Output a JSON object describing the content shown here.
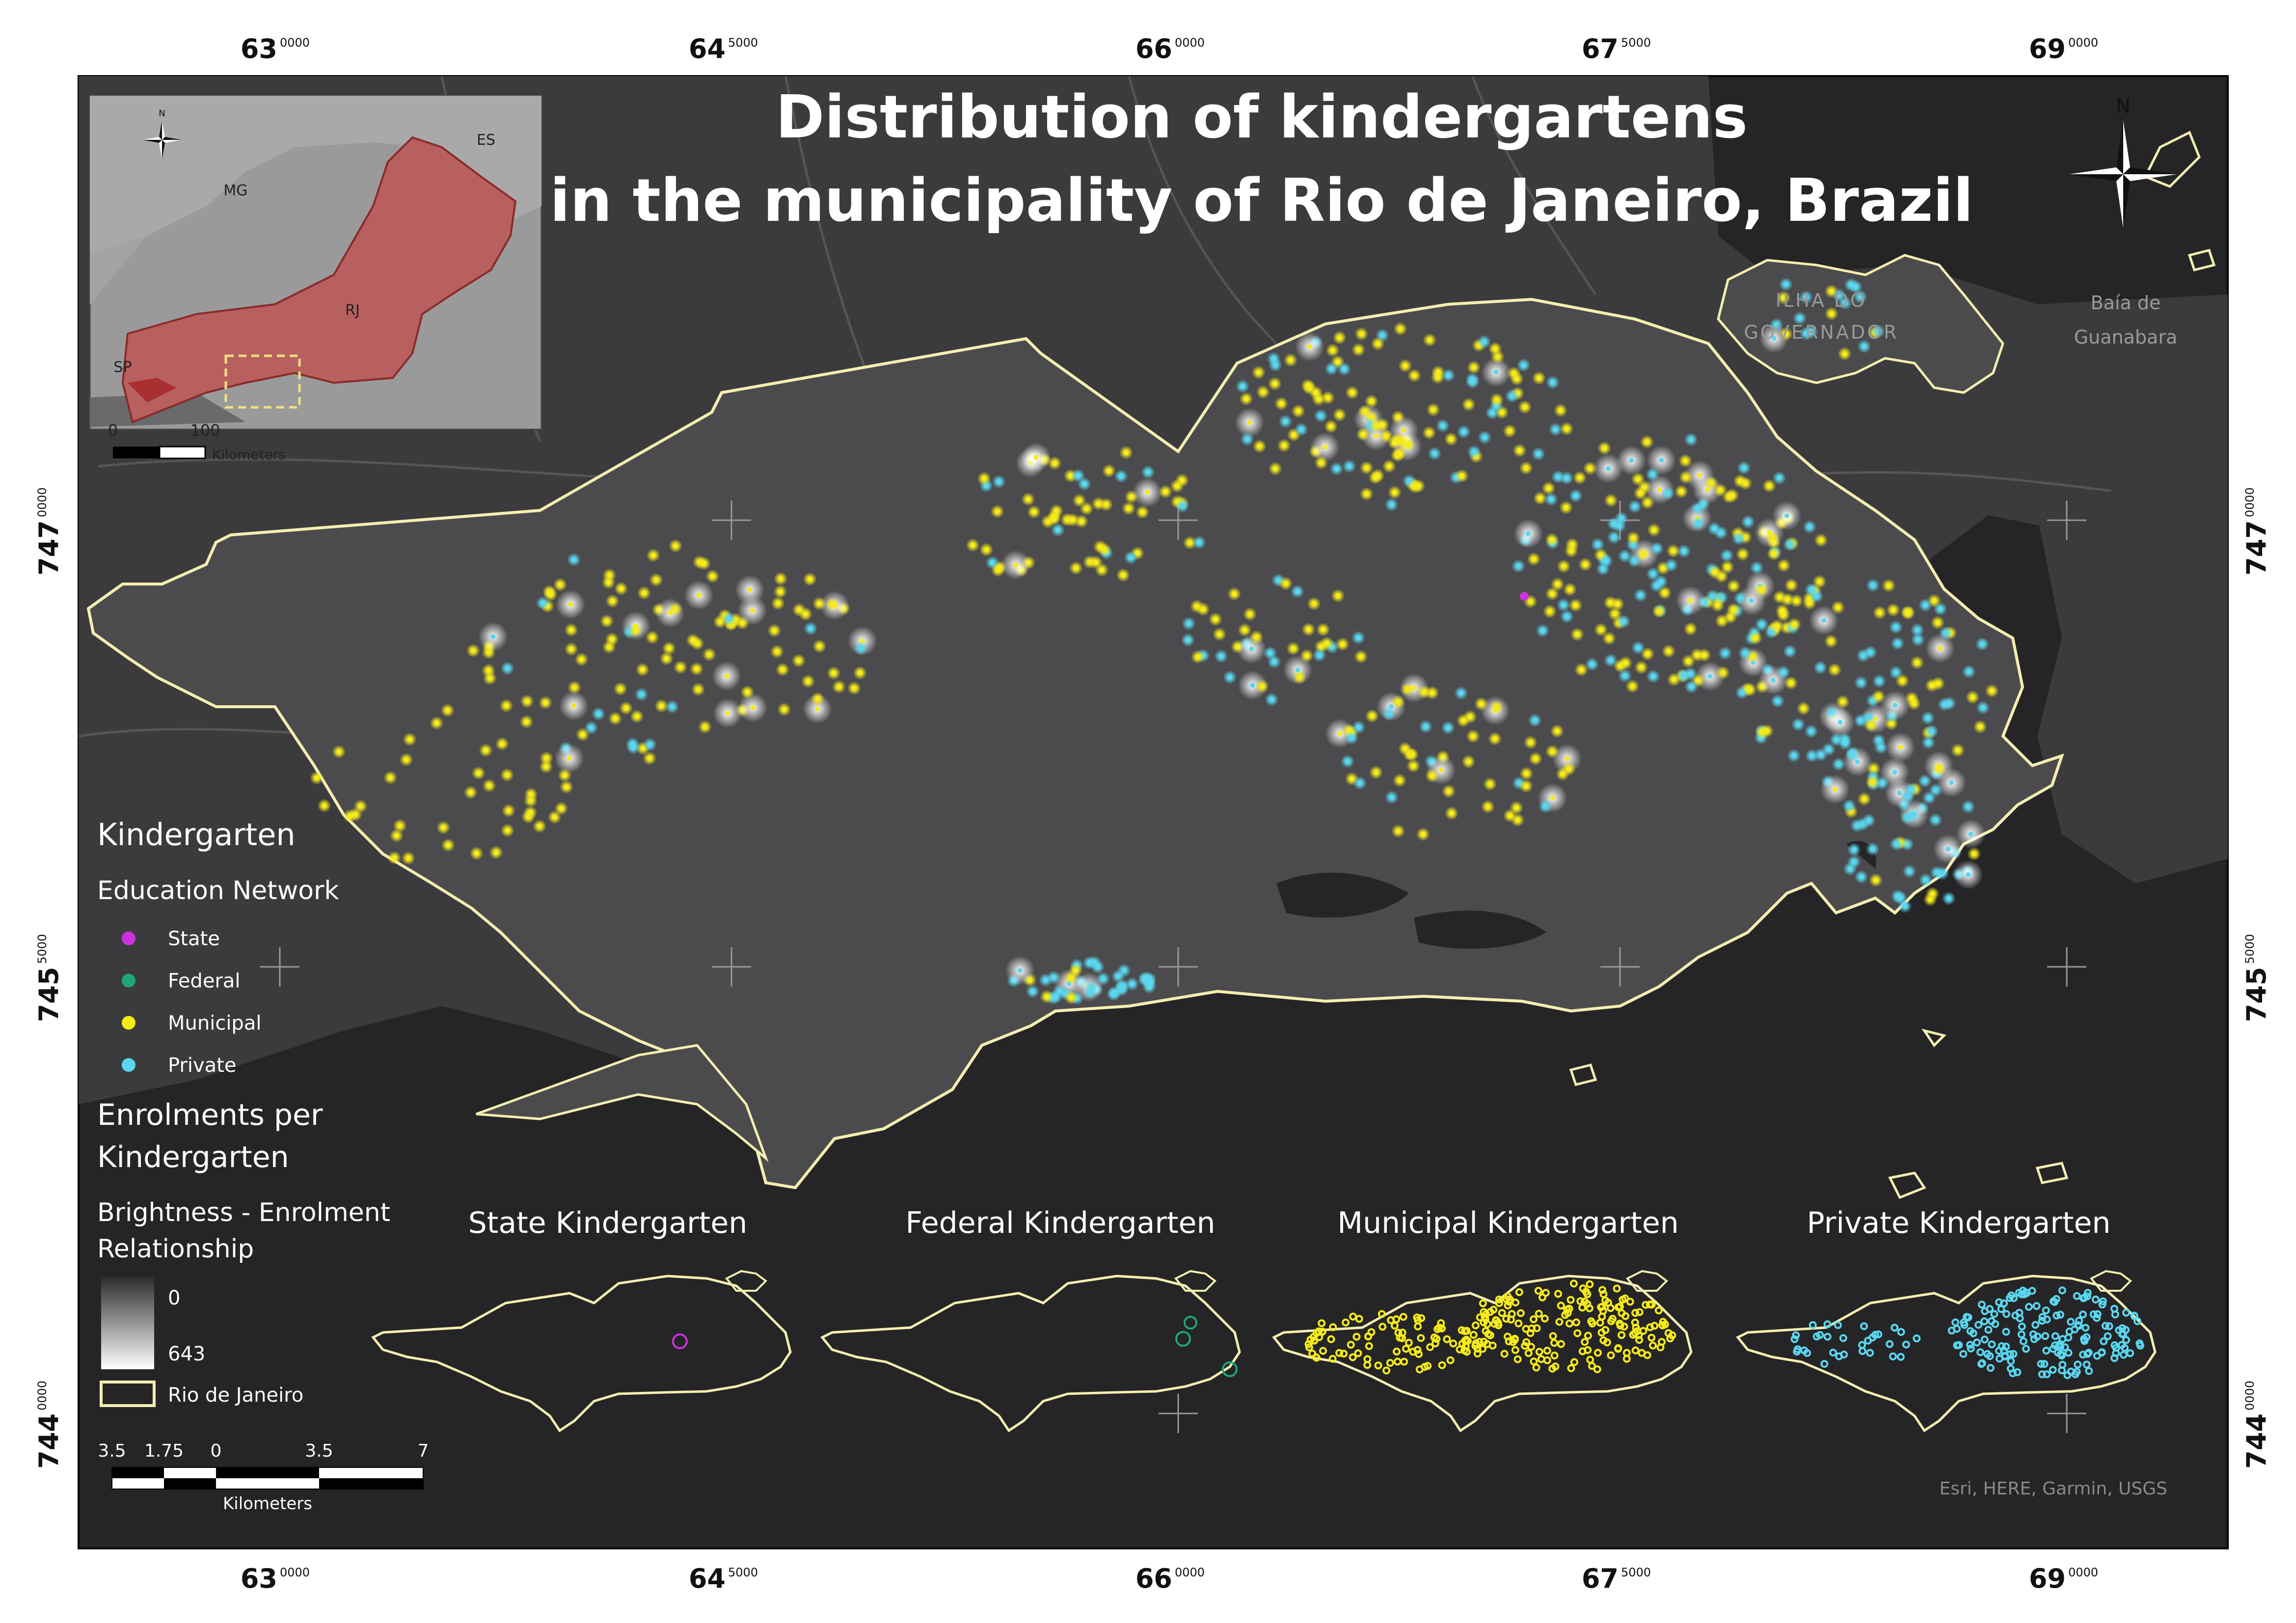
{
  "title": {
    "line1": "Distribution of kindergartens",
    "line2": "in the municipality of Rio de Janeiro, Brazil"
  },
  "grid": {
    "x_labels": [
      {
        "main": "63",
        "sup": "0000"
      },
      {
        "main": "64",
        "sup": "5000"
      },
      {
        "main": "66",
        "sup": "0000"
      },
      {
        "main": "67",
        "sup": "5000"
      },
      {
        "main": "69",
        "sup": "0000"
      }
    ],
    "y_labels": [
      {
        "main": "747",
        "sup": "0000"
      },
      {
        "main": "745",
        "sup": "5000"
      },
      {
        "main": "744",
        "sup": "0000"
      }
    ]
  },
  "inset": {
    "north": "N",
    "states": [
      "MG",
      "ES",
      "RJ",
      "SP"
    ],
    "scale_min": "0",
    "scale_max": "100",
    "scale_unit": "Kilometers"
  },
  "main_north": "N",
  "place_labels": {
    "ilha_line1": "ILHA DO",
    "ilha_line2": "GOVERNADOR",
    "baia_line1": "Baía de",
    "baia_line2": "Guanabara"
  },
  "legend": {
    "heading": "Kindergarten",
    "network_heading": "Education Network",
    "networks": [
      {
        "label": "State",
        "color": "#cc33dd"
      },
      {
        "label": "Federal",
        "color": "#1fa67a"
      },
      {
        "label": "Municipal",
        "color": "#f5ea1a"
      },
      {
        "label": "Private",
        "color": "#5ad6ee"
      }
    ],
    "enrol_heading_1": "Enrolments per",
    "enrol_heading_2": "Kindergarten",
    "brightness_1": "Brightness - Enrolment",
    "brightness_2": "Relationship",
    "ramp_min": "0",
    "ramp_max": "643",
    "boundary_label": "Rio de Janeiro",
    "scale_ticks": [
      "3.5",
      "1.75",
      "0",
      "3.5",
      "7"
    ],
    "scale_unit": "Kilometers"
  },
  "small_maps": [
    {
      "title": "State Kindergarten",
      "color": "#cc33dd"
    },
    {
      "title": "Federal Kindergarten",
      "color": "#1fa67a"
    },
    {
      "title": "Municipal Kindergarten",
      "color": "#f5ea1a"
    },
    {
      "title": "Private Kindergarten",
      "color": "#5ad6ee"
    }
  ],
  "attribution": "Esri, HERE, Garmin, USGS",
  "colors": {
    "background": "#252528",
    "land": "#4b4b4d",
    "boundary": "#f4efb0",
    "inset_state_fill": "#b86060"
  }
}
